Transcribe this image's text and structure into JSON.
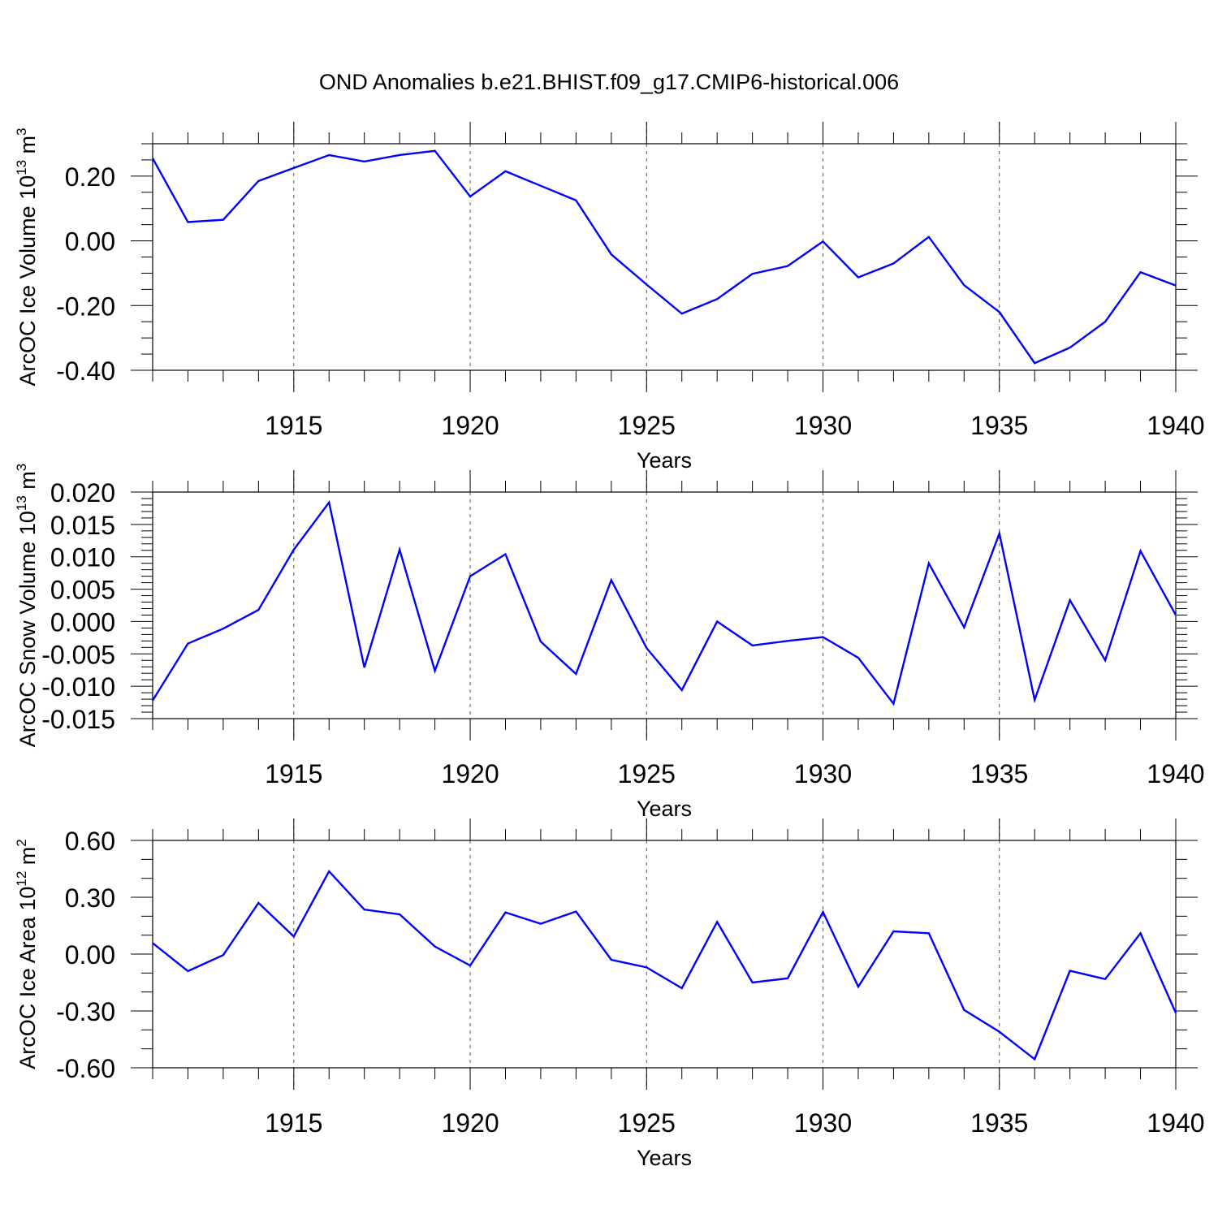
{
  "title": "OND Anomalies b.e21.BHIST.f09_g17.CMIP6-historical.006",
  "colors": {
    "line": "#0000ff",
    "axis": "#000000",
    "grid": "#555555",
    "background": "#ffffff"
  },
  "chart_data": [
    {
      "type": "line",
      "ylabel": "ArcOC Ice Volume 10",
      "ylabel_exp": "13",
      "ylabel_unit": " m",
      "ylabel_unit_exp": "3",
      "xlabel": "Years",
      "xlim": [
        1911,
        1940
      ],
      "ylim": [
        -0.4,
        0.3
      ],
      "yticks": [
        -0.4,
        -0.2,
        0.0,
        0.2
      ],
      "ytick_labels": [
        "-0.40",
        "-0.20",
        "0.00",
        "0.20"
      ],
      "xticks": [
        1915,
        1920,
        1925,
        1930,
        1935,
        1940
      ],
      "xtick_labels": [
        "1915",
        "1920",
        "1925",
        "1930",
        "1935",
        "1940"
      ],
      "y_minor_step": 0.05,
      "grid": "vertical dashed at major x ticks",
      "x": [
        1911,
        1912,
        1913,
        1914,
        1915,
        1916,
        1917,
        1918,
        1919,
        1920,
        1921,
        1922,
        1923,
        1924,
        1925,
        1926,
        1927,
        1928,
        1929,
        1930,
        1931,
        1932,
        1933,
        1934,
        1935,
        1936,
        1937,
        1938,
        1939,
        1940
      ],
      "series": [
        {
          "values": [
            0.255,
            0.058,
            0.065,
            0.185,
            0.225,
            0.265,
            0.245,
            0.265,
            0.278,
            0.137,
            0.215,
            0.17,
            0.125,
            -0.042,
            -0.135,
            -0.225,
            -0.18,
            -0.102,
            -0.078,
            -0.002,
            -0.113,
            -0.07,
            0.012,
            -0.137,
            -0.22,
            -0.378,
            -0.33,
            -0.25,
            -0.097,
            -0.138
          ]
        }
      ]
    },
    {
      "type": "line",
      "ylabel": "ArcOC Snow Volume 10",
      "ylabel_exp": "13",
      "ylabel_unit": " m",
      "ylabel_unit_exp": "3",
      "xlabel": "Years",
      "xlim": [
        1911,
        1940
      ],
      "ylim": [
        -0.015,
        0.02
      ],
      "yticks": [
        -0.015,
        -0.01,
        -0.005,
        0.0,
        0.005,
        0.01,
        0.015,
        0.02
      ],
      "ytick_labels": [
        "-0.015",
        "-0.010",
        "-0.005",
        "0.000",
        "0.005",
        "0.010",
        "0.015",
        "0.020"
      ],
      "xticks": [
        1915,
        1920,
        1925,
        1930,
        1935,
        1940
      ],
      "xtick_labels": [
        "1915",
        "1920",
        "1925",
        "1930",
        "1935",
        "1940"
      ],
      "y_minor_step": 0.001,
      "grid": "vertical dashed at major x ticks",
      "x": [
        1911,
        1912,
        1913,
        1914,
        1915,
        1916,
        1917,
        1918,
        1919,
        1920,
        1921,
        1922,
        1923,
        1924,
        1925,
        1926,
        1927,
        1928,
        1929,
        1930,
        1931,
        1932,
        1933,
        1934,
        1935,
        1936,
        1937,
        1938,
        1939,
        1940
      ],
      "series": [
        {
          "values": [
            -0.0122,
            -0.0034,
            -0.0011,
            0.0018,
            0.0111,
            0.0184,
            -0.0071,
            0.0111,
            -0.0076,
            0.007,
            0.0104,
            -0.0031,
            -0.0081,
            0.0064,
            -0.0041,
            -0.0106,
            0.0,
            -0.0037,
            -0.003,
            -0.0024,
            -0.0056,
            -0.0127,
            0.009,
            -0.0009,
            0.0136,
            -0.0121,
            0.0033,
            -0.006,
            0.0109,
            0.001
          ]
        }
      ]
    },
    {
      "type": "line",
      "ylabel": "ArcOC Ice Area 10",
      "ylabel_exp": "12",
      "ylabel_unit": " m",
      "ylabel_unit_exp": "2",
      "xlabel": "Years",
      "xlim": [
        1911,
        1940
      ],
      "ylim": [
        -0.6,
        0.6
      ],
      "yticks": [
        -0.6,
        -0.3,
        0.0,
        0.3,
        0.6
      ],
      "ytick_labels": [
        "-0.60",
        "-0.30",
        "0.00",
        "0.30",
        "0.60"
      ],
      "xticks": [
        1915,
        1920,
        1925,
        1930,
        1935,
        1940
      ],
      "xtick_labels": [
        "1915",
        "1920",
        "1925",
        "1930",
        "1935",
        "1940"
      ],
      "y_minor_step": 0.1,
      "grid": "vertical dashed at major x ticks",
      "x": [
        1911,
        1912,
        1913,
        1914,
        1915,
        1916,
        1917,
        1918,
        1919,
        1920,
        1921,
        1922,
        1923,
        1924,
        1925,
        1926,
        1927,
        1928,
        1929,
        1930,
        1931,
        1932,
        1933,
        1934,
        1935,
        1936,
        1937,
        1938,
        1939,
        1940
      ],
      "series": [
        {
          "values": [
            0.058,
            -0.09,
            -0.005,
            0.27,
            0.093,
            0.437,
            0.235,
            0.21,
            0.04,
            -0.06,
            0.22,
            0.16,
            0.225,
            -0.03,
            -0.07,
            -0.18,
            0.17,
            -0.15,
            -0.128,
            0.222,
            -0.172,
            0.12,
            0.11,
            -0.295,
            -0.41,
            -0.555,
            -0.088,
            -0.132,
            0.11,
            -0.31
          ]
        }
      ]
    }
  ]
}
